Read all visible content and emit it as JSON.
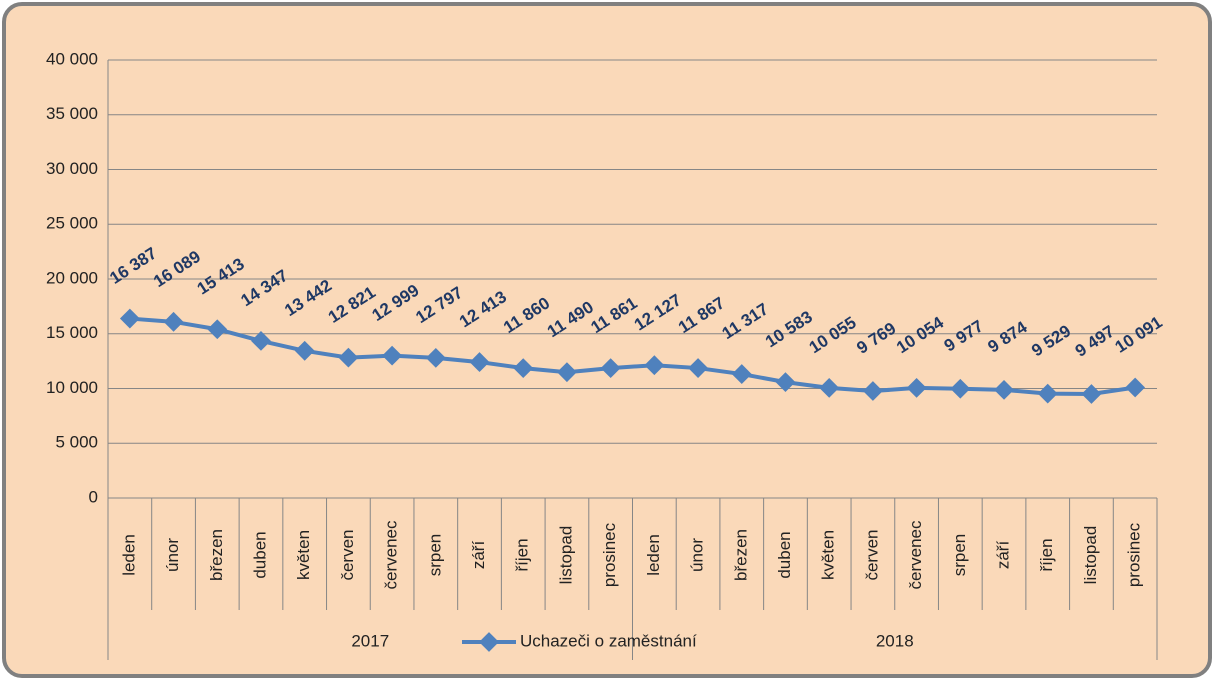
{
  "chart_data": {
    "type": "line",
    "categories": [
      "leden",
      "únor",
      "březen",
      "duben",
      "květen",
      "červen",
      "červenec",
      "srpen",
      "září",
      "říjen",
      "listopad",
      "prosinec",
      "leden",
      "únor",
      "březen",
      "duben",
      "květen",
      "červen",
      "červenec",
      "srpen",
      "září",
      "říjen",
      "listopad",
      "prosinec"
    ],
    "category_groups": [
      "2017",
      "2018"
    ],
    "series": [
      {
        "name": "Uchazeči o zaměstnání",
        "color": "#4f81bd",
        "values": [
          16387,
          16089,
          15413,
          14347,
          13442,
          12821,
          12999,
          12797,
          12413,
          11860,
          11490,
          11861,
          12127,
          11867,
          11317,
          10583,
          10055,
          9769,
          10054,
          9977,
          9874,
          9529,
          9497,
          10091
        ],
        "value_labels": [
          "16 387",
          "16 089",
          "15 413",
          "14 347",
          "13 442",
          "12 821",
          "12 999",
          "12 797",
          "12 413",
          "11 860",
          "11 490",
          "11 861",
          "12 127",
          "11 867",
          "11 317",
          "10 583",
          "10 055",
          "9 769",
          "10 054",
          "9 977",
          "9 874",
          "9 529",
          "9 497",
          "10 091"
        ]
      }
    ],
    "ylim": [
      0,
      40000
    ],
    "yticks": [
      0,
      {
        "value": 5000,
        "label": "5 000"
      },
      {
        "value": 10000,
        "label": "10 000"
      },
      {
        "value": 15000,
        "label": "15 000"
      },
      {
        "value": 20000,
        "label": "20 000"
      },
      {
        "value": 25000,
        "label": "25 000"
      },
      {
        "value": 30000,
        "label": "30 000"
      },
      {
        "value": 35000,
        "label": "35 000"
      },
      {
        "value": 40000,
        "label": "40 000"
      }
    ],
    "grid": true,
    "legend": "bottom"
  }
}
